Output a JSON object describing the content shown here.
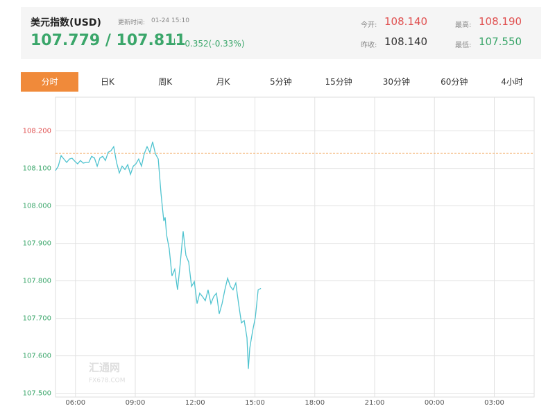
{
  "header": {
    "title": "美元指数(USD)",
    "update_label": "更新时间:",
    "update_time": "01-24 15:10",
    "price": "107.779 / 107.811",
    "arrow": "↓",
    "change": "-0.352(-0.33%)",
    "open_label": "今开:",
    "open": "108.140",
    "high_label": "最高:",
    "high": "108.190",
    "prev_close_label": "昨收:",
    "prev_close": "108.140",
    "low_label": "最低:",
    "low": "107.550"
  },
  "tabs": [
    "分时",
    "日K",
    "周K",
    "月K",
    "5分钟",
    "15分钟",
    "30分钟",
    "60分钟",
    "4小时"
  ],
  "watermark": {
    "name": "汇通网",
    "site": "FX678.COM"
  },
  "chart_data": {
    "type": "line",
    "color": "#4fc3cf",
    "reference_value": 108.14,
    "reference_color": "#f0a050",
    "grid": true,
    "ylim": [
      107.49,
      108.29
    ],
    "yticks": [
      {
        "value": 107.5,
        "label": "107.500"
      },
      {
        "value": 107.6,
        "label": "107.600"
      },
      {
        "value": 107.7,
        "label": "107.700"
      },
      {
        "value": 107.8,
        "label": "107.800"
      },
      {
        "value": 107.9,
        "label": "107.900"
      },
      {
        "value": 108.0,
        "label": "108.000"
      },
      {
        "value": 108.1,
        "label": "108.100"
      },
      {
        "value": 108.2,
        "label": "108.200"
      }
    ],
    "xlim": [
      5,
      29
    ],
    "xticks": [
      {
        "value": 6,
        "label": "06:00"
      },
      {
        "value": 9,
        "label": "09:00"
      },
      {
        "value": 12,
        "label": "12:00"
      },
      {
        "value": 15,
        "label": "15:00"
      },
      {
        "value": 18,
        "label": "18:00"
      },
      {
        "value": 21,
        "label": "21:00"
      },
      {
        "value": 24,
        "label": "00:00"
      },
      {
        "value": 27,
        "label": "03:00"
      }
    ],
    "x": [
      5.0,
      5.14,
      5.28,
      5.42,
      5.56,
      5.7,
      5.83,
      5.97,
      6.11,
      6.25,
      6.39,
      6.53,
      6.67,
      6.81,
      6.95,
      7.09,
      7.23,
      7.37,
      7.5,
      7.64,
      7.78,
      7.92,
      8.06,
      8.2,
      8.34,
      8.48,
      8.62,
      8.76,
      8.9,
      9.03,
      9.17,
      9.31,
      9.45,
      9.59,
      9.73,
      9.87,
      10.01,
      10.15,
      10.29,
      10.36,
      10.43,
      10.5,
      10.57,
      10.7,
      10.84,
      10.98,
      11.12,
      11.26,
      11.4,
      11.54,
      11.68,
      11.82,
      11.96,
      12.1,
      12.23,
      12.37,
      12.51,
      12.65,
      12.79,
      12.93,
      13.07,
      13.21,
      13.35,
      13.49,
      13.63,
      13.77,
      13.9,
      14.04,
      14.18,
      14.32,
      14.46,
      14.6,
      14.67,
      14.74,
      14.88,
      15.02,
      15.16,
      15.3
    ],
    "values": [
      108.094,
      108.106,
      108.134,
      108.125,
      108.116,
      108.125,
      108.127,
      108.119,
      108.112,
      108.121,
      108.114,
      108.116,
      108.116,
      108.132,
      108.128,
      108.106,
      108.128,
      108.132,
      108.121,
      108.143,
      108.147,
      108.158,
      108.116,
      108.088,
      108.106,
      108.097,
      108.11,
      108.084,
      108.106,
      108.112,
      108.125,
      108.106,
      108.139,
      108.158,
      108.143,
      108.171,
      108.139,
      108.125,
      108.033,
      107.996,
      107.96,
      107.969,
      107.923,
      107.886,
      107.813,
      107.831,
      107.776,
      107.85,
      107.932,
      107.868,
      107.85,
      107.785,
      107.798,
      107.739,
      107.767,
      107.758,
      107.747,
      107.776,
      107.739,
      107.758,
      107.767,
      107.712,
      107.739,
      107.776,
      107.807,
      107.785,
      107.776,
      107.794,
      107.739,
      107.688,
      107.694,
      107.648,
      107.565,
      107.62,
      107.666,
      107.703,
      107.776,
      107.78
    ]
  }
}
